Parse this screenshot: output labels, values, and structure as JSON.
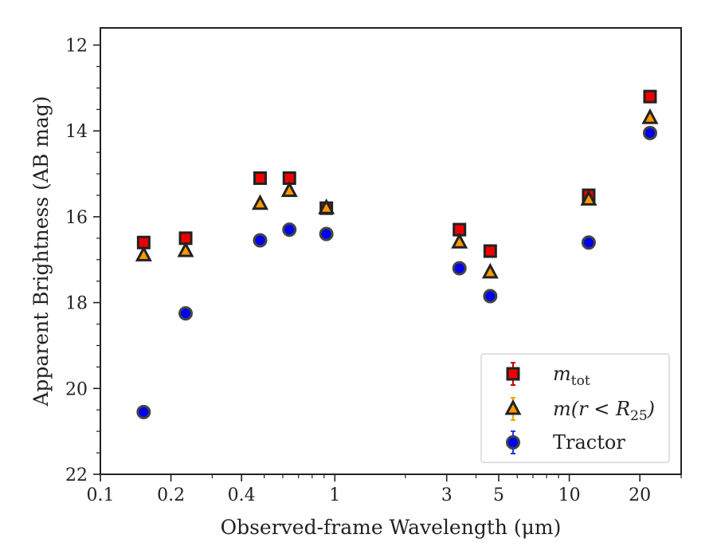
{
  "chart_data": {
    "type": "scatter",
    "xlabel": "Observed-frame Wavelength (μm)",
    "ylabel": "Apparent Brightness (AB mag)",
    "xscale": "log",
    "xlim": [
      0.1,
      30
    ],
    "ylim": [
      22,
      11.6
    ],
    "y_inverted": true,
    "x_ticks": [
      0.1,
      0.2,
      0.4,
      1,
      3,
      5,
      10,
      20
    ],
    "x_tick_labels": [
      "0.1",
      "0.2",
      "0.4",
      "1",
      "3",
      "5",
      "10",
      "20"
    ],
    "y_ticks": [
      12,
      14,
      16,
      18,
      20,
      22
    ],
    "y_tick_labels": [
      "12",
      "14",
      "16",
      "18",
      "20",
      "22"
    ],
    "grid": false,
    "legend_position": "lower-right",
    "series": [
      {
        "name": "m_tot",
        "label_main": "m",
        "label_sub": "tot",
        "marker": "square",
        "color": "#ee0000",
        "edge_color": "#222222",
        "errbar_color": "#cc0000",
        "x": [
          0.153,
          0.231,
          0.48,
          0.64,
          0.92,
          3.4,
          4.6,
          12.1,
          22.1
        ],
        "y": [
          16.6,
          16.5,
          15.1,
          15.1,
          15.8,
          16.3,
          16.8,
          15.5,
          13.2
        ]
      },
      {
        "name": "m(r < R25)",
        "label_main": "m(r < R",
        "label_sub": "25",
        "label_tail": ")",
        "marker": "triangle",
        "color": "#ff9900",
        "edge_color": "#222222",
        "errbar_color": "#f0a800",
        "x": [
          0.153,
          0.231,
          0.48,
          0.64,
          0.92,
          3.4,
          4.6,
          12.1,
          22.1
        ],
        "y": [
          16.9,
          16.8,
          15.7,
          15.4,
          15.8,
          16.6,
          17.3,
          15.6,
          13.7
        ]
      },
      {
        "name": "Tractor",
        "marker": "circle",
        "color": "#0000ee",
        "edge_color": "#444444",
        "errbar_color": "#2233ff",
        "x": [
          0.153,
          0.231,
          0.48,
          0.64,
          0.92,
          3.4,
          4.6,
          12.1,
          22.1
        ],
        "y": [
          20.55,
          18.25,
          16.55,
          16.3,
          16.4,
          17.2,
          17.85,
          16.6,
          14.05
        ]
      }
    ]
  }
}
